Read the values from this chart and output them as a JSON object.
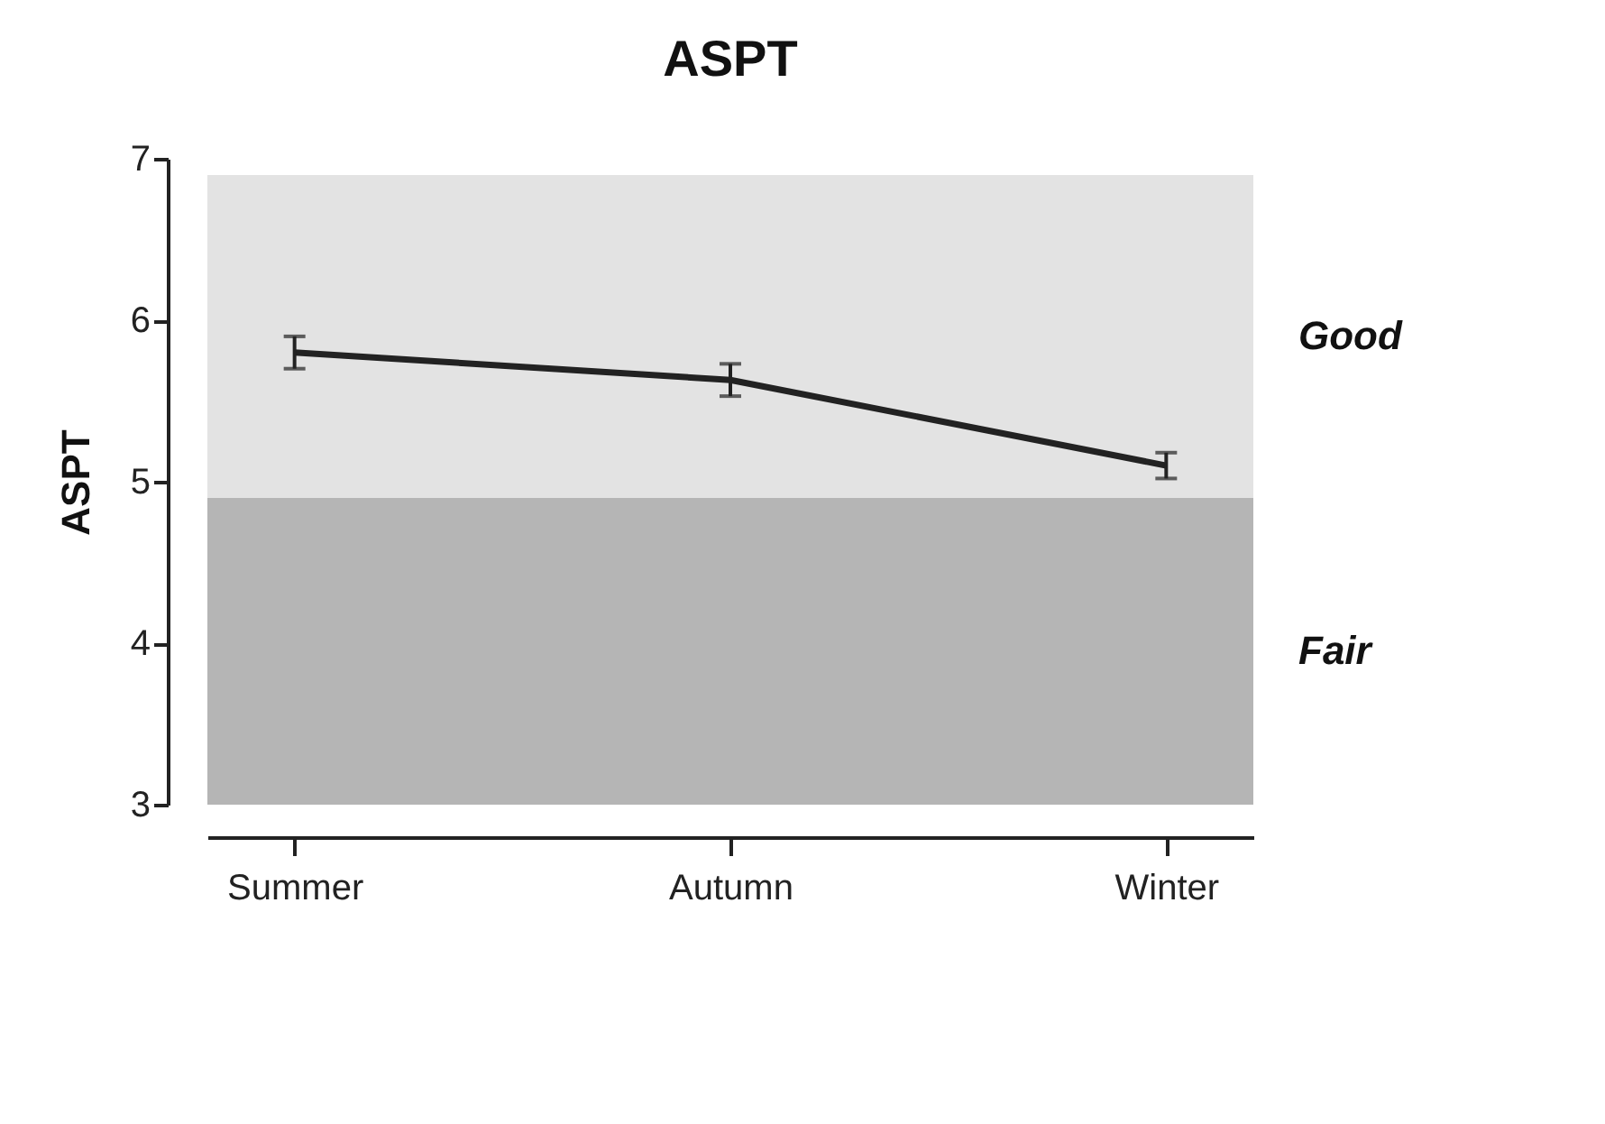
{
  "chart_data": {
    "type": "line",
    "title": "ASPT",
    "ylabel": "ASPT",
    "categories": [
      "Summer",
      "Autumn",
      "Winter"
    ],
    "series": [
      {
        "color": "#222222",
        "values": [
          5.8,
          5.63,
          5.1
        ],
        "errors": [
          0.1,
          0.1,
          0.08
        ]
      }
    ],
    "ylim": [
      3,
      7
    ],
    "yticks": [
      3,
      4,
      5,
      6,
      7
    ],
    "grid": false,
    "marker": "none",
    "line_style": "solid",
    "bands": [
      {
        "axis": "y",
        "from": 4.9,
        "to": 6.9,
        "label": "Good",
        "color": "#e3e3e3"
      },
      {
        "axis": "y",
        "from": 3,
        "to": 4.9,
        "label": "Fair",
        "color": "#b5b5b5"
      }
    ]
  }
}
